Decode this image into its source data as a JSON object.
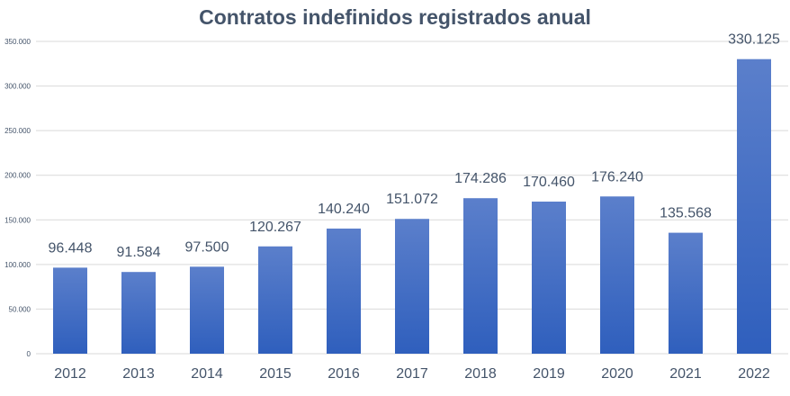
{
  "chart_data": {
    "type": "bar",
    "title": "Contratos indefinidos registrados anual",
    "xlabel": "",
    "ylabel": "",
    "categories": [
      "2012",
      "2013",
      "2014",
      "2015",
      "2016",
      "2017",
      "2018",
      "2019",
      "2020",
      "2021",
      "2022"
    ],
    "values": [
      96448,
      91584,
      97500,
      120267,
      140240,
      151072,
      174286,
      170460,
      176240,
      135568,
      330125
    ],
    "data_labels": [
      "96.448",
      "91.584",
      "97.500",
      "120.267",
      "140.240",
      "151.072",
      "174.286",
      "170.460",
      "176.240",
      "135.568",
      "330.125"
    ],
    "ylim": [
      0,
      350000
    ],
    "yticks": [
      0,
      50000,
      100000,
      150000,
      200000,
      250000,
      300000,
      350000
    ],
    "ytick_labels": [
      "0",
      "50.000",
      "100.000",
      "150.000",
      "200.000",
      "250.000",
      "300.000",
      "350.000"
    ],
    "grid": true,
    "legend": "none",
    "colors": {
      "bar_top": "#5b7fcb",
      "bar_bottom": "#2f5fbd",
      "grid": "#d9d9d9",
      "text": "#44546a"
    }
  }
}
